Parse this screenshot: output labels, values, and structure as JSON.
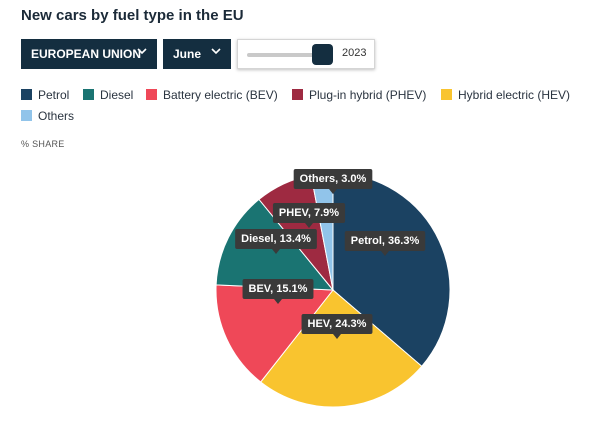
{
  "header": {
    "title": "New cars by fuel type in the EU"
  },
  "controls": {
    "region": {
      "value": "EUROPEAN UNION",
      "icon": "chevron-down-icon"
    },
    "month": {
      "value": "June",
      "icon": "chevron-down-icon"
    },
    "year_slider": {
      "value": "2023"
    }
  },
  "legend": {
    "items": [
      {
        "label": "Petrol",
        "color": "#1b4262"
      },
      {
        "label": "Diesel",
        "color": "#1a7472"
      },
      {
        "label": "Battery electric (BEV)",
        "color": "#ef4858"
      },
      {
        "label": "Plug-in hybrid (PHEV)",
        "color": "#9e2a41"
      },
      {
        "label": "Hybrid electric (HEV)",
        "color": "#f9c42f"
      },
      {
        "label": "Others",
        "color": "#91c4ea"
      }
    ]
  },
  "axis": {
    "unit_label": "% SHARE"
  },
  "chart_data": {
    "type": "pie",
    "title": "New cars by fuel type in the EU",
    "slices": [
      {
        "label": "Petrol",
        "tooltip": "Petrol, 36.3%",
        "value": 36.3,
        "color": "#1b4262"
      },
      {
        "label": "HEV",
        "tooltip": "HEV, 24.3%",
        "value": 24.3,
        "color": "#f9c42f"
      },
      {
        "label": "BEV",
        "tooltip": "BEV, 15.1%",
        "value": 15.1,
        "color": "#ef4858"
      },
      {
        "label": "Diesel",
        "tooltip": "Diesel, 13.4%",
        "value": 13.4,
        "color": "#1a7472"
      },
      {
        "label": "PHEV",
        "tooltip": "PHEV, 7.9%",
        "value": 7.9,
        "color": "#9e2a41"
      },
      {
        "label": "Others",
        "tooltip": "Others, 3.0%",
        "value": 3.0,
        "color": "#91c4ea"
      }
    ],
    "legend_placement": "top"
  }
}
